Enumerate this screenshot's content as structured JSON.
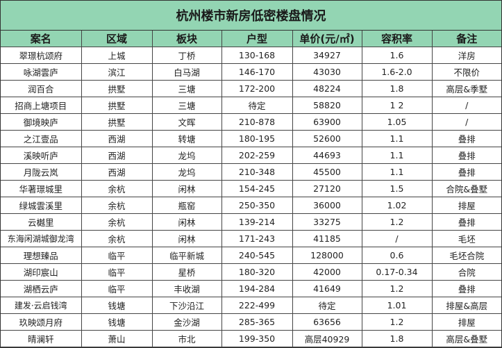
{
  "title": "杭州楼市新房低密楼盘情况",
  "colors": {
    "header_bg": "#93d5b3",
    "border": "#444444"
  },
  "columns": [
    "案名",
    "区域",
    "板块",
    "户型",
    "单价(元/㎡)",
    "容积率",
    "备注"
  ],
  "rows": [
    [
      "翠璟杭颂府",
      "上城",
      "丁桥",
      "130-168",
      "34927",
      "1.6",
      "洋房"
    ],
    [
      "咏湖雲庐",
      "滨江",
      "白马湖",
      "146-170",
      "43030",
      "1.6-2.0",
      "不限价"
    ],
    [
      "润百合",
      "拱墅",
      "三塘",
      "172-200",
      "48224",
      "1.8",
      "高层&季墅"
    ],
    [
      "招商上塘项目",
      "拱墅",
      "三塘",
      "待定",
      "58820",
      "1 2",
      "/"
    ],
    [
      "御境映庐",
      "拱墅",
      "文晖",
      "210-878",
      "63900",
      "1.05",
      "/"
    ],
    [
      "之江壹品",
      "西湖",
      "转塘",
      "180-195",
      "52600",
      "1.1",
      "叠排"
    ],
    [
      "溪映听庐",
      "西湖",
      "龙坞",
      "202-259",
      "44693",
      "1.1",
      "叠排"
    ],
    [
      "月陇云岚",
      "西湖",
      "龙坞",
      "210-348",
      "45500",
      "1.1",
      "叠排"
    ],
    [
      "华著璟城里",
      "余杭",
      "闲林",
      "154-245",
      "27120",
      "1.5",
      "合院&叠墅"
    ],
    [
      "绿城雲溪里",
      "余杭",
      "瓶窑",
      "250-350",
      "36000",
      "1.02",
      "排屋"
    ],
    [
      "云樾里",
      "余杭",
      "闲林",
      "139-214",
      "33275",
      "1.2",
      "叠排"
    ],
    [
      "东海闲湖城御龙湾",
      "余杭",
      "闲林",
      "171-243",
      "41185",
      "/",
      "毛坯"
    ],
    [
      "理想臻品",
      "临平",
      "临平新城",
      "240-545",
      "128000",
      "0.6",
      "毛坯合院"
    ],
    [
      "湖印宸山",
      "临平",
      "星桥",
      "180-320",
      "42000",
      "0.17-0.34",
      "合院"
    ],
    [
      "湖栖云庐",
      "临平",
      "丰收湖",
      "194-284",
      "41649",
      "1.2",
      "叠排"
    ],
    [
      "建发·云启钱湾",
      "钱塘",
      "下沙沿江",
      "222-499",
      "待定",
      "1.01",
      "排屋&高层"
    ],
    [
      "玖映颂月府",
      "钱塘",
      "金沙湖",
      "285-365",
      "63656",
      "1.2",
      "排屋"
    ],
    [
      "晴澜轩",
      "萧山",
      "市北",
      "199-350",
      "高层40929",
      "1.8",
      "高层&叠墅"
    ]
  ]
}
